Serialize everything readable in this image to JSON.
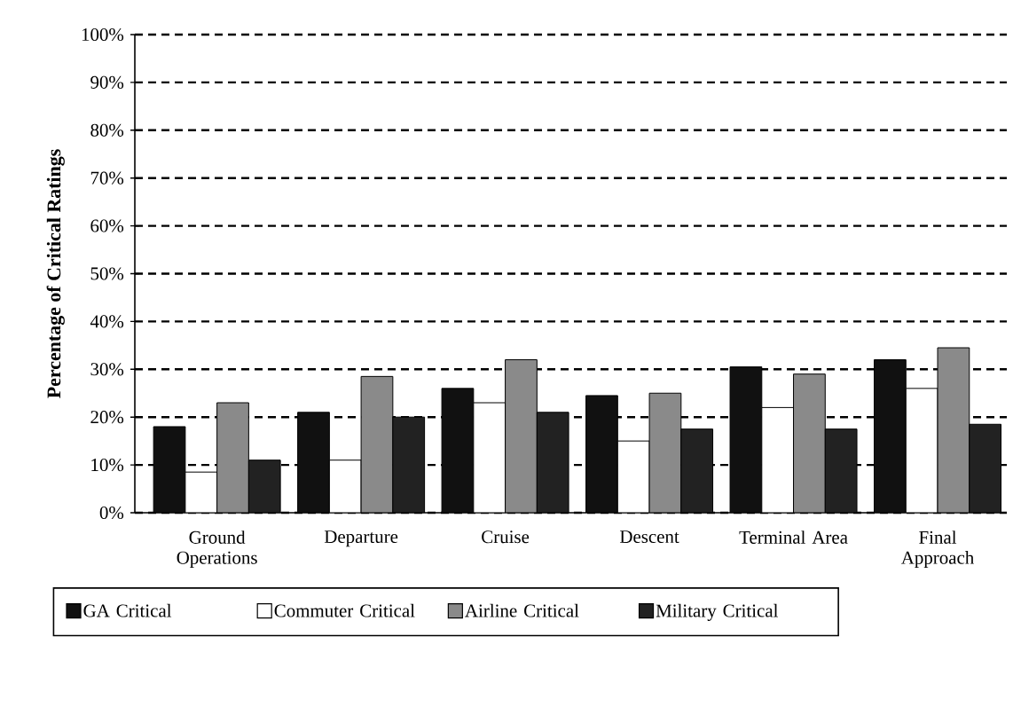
{
  "chart_data": {
    "type": "bar",
    "ylabel": "Percentage of Critical Ratings",
    "categories": [
      "Ground Operations",
      "Departure",
      "Cruise",
      "Descent",
      "Terminal Area",
      "Final Approach"
    ],
    "series": [
      {
        "name": "GA Critical",
        "color": "#111111",
        "values": [
          18,
          21,
          26,
          24.5,
          30.5,
          32
        ]
      },
      {
        "name": "Commuter Critical",
        "color": "#ffffff",
        "values": [
          8.5,
          11,
          23,
          15,
          22,
          26
        ]
      },
      {
        "name": "Airline Critical",
        "color": "#8a8a8a",
        "values": [
          23,
          28.5,
          32,
          25,
          29,
          34.5
        ]
      },
      {
        "name": "Military Critical",
        "color": "#222222",
        "values": [
          11,
          20,
          21,
          17.5,
          17.5,
          18.5
        ]
      }
    ],
    "ylim": [
      0,
      100
    ],
    "yticks": [
      {
        "value": 0,
        "label": "0%"
      },
      {
        "value": 10,
        "label": "10%"
      },
      {
        "value": 20,
        "label": "20%"
      },
      {
        "value": 30,
        "label": "30%"
      },
      {
        "value": 40,
        "label": "40%"
      },
      {
        "value": 50,
        "label": "50%"
      },
      {
        "value": 60,
        "label": "60%"
      },
      {
        "value": 70,
        "label": "70%"
      },
      {
        "value": 80,
        "label": "80%"
      },
      {
        "value": 90,
        "label": "90%"
      },
      {
        "value": 100,
        "label": "100%"
      }
    ],
    "grid": "y",
    "legend": "bottom"
  }
}
